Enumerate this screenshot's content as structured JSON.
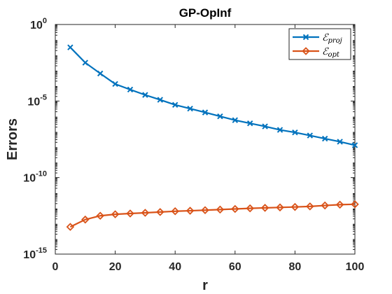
{
  "chart_data": {
    "type": "line",
    "title": "GP-OpInf",
    "xlabel": "r",
    "ylabel": "Errors",
    "xlim": [
      0,
      100
    ],
    "ylim": [
      1e-15,
      1
    ],
    "yscale": "log",
    "x_ticks": [
      0,
      20,
      40,
      60,
      80,
      100
    ],
    "y_ticks": [
      {
        "base": "10",
        "exp": "0",
        "value": 1
      },
      {
        "base": "10",
        "exp": "-5",
        "value": 1e-05
      },
      {
        "base": "10",
        "exp": "-10",
        "value": 1e-10
      },
      {
        "base": "10",
        "exp": "-15",
        "value": 1e-15
      }
    ],
    "grid": false,
    "legend_position": "top-right",
    "x": [
      5,
      10,
      15,
      20,
      25,
      30,
      35,
      40,
      45,
      50,
      55,
      60,
      65,
      70,
      75,
      80,
      85,
      90,
      95,
      100
    ],
    "series": [
      {
        "name": "ℰ",
        "name_sub": "proj",
        "color": "#0072BD",
        "marker": "x",
        "values": [
          0.032,
          0.0032,
          0.00063,
          0.00013,
          5.6e-05,
          2.5e-05,
          1.2e-05,
          5.6e-06,
          3.2e-06,
          1.8e-06,
          1e-06,
          5.6e-07,
          3.5e-07,
          2.2e-07,
          1.3e-07,
          8.9e-08,
          5.6e-08,
          3.5e-08,
          2.2e-08,
          1.3e-08
        ]
      },
      {
        "name": "ℰ",
        "name_sub": "opt",
        "color": "#D95319",
        "marker": "diamond",
        "values": [
          6e-14,
          1.8e-13,
          3.2e-13,
          4e-13,
          4.5e-13,
          5e-13,
          5.6e-13,
          6.3e-13,
          6.8e-13,
          7.4e-13,
          8.1e-13,
          8.9e-13,
          9.8e-13,
          1.05e-12,
          1.12e-12,
          1.2e-12,
          1.3e-12,
          1.5e-12,
          1.7e-12,
          1.8e-12
        ]
      }
    ]
  }
}
